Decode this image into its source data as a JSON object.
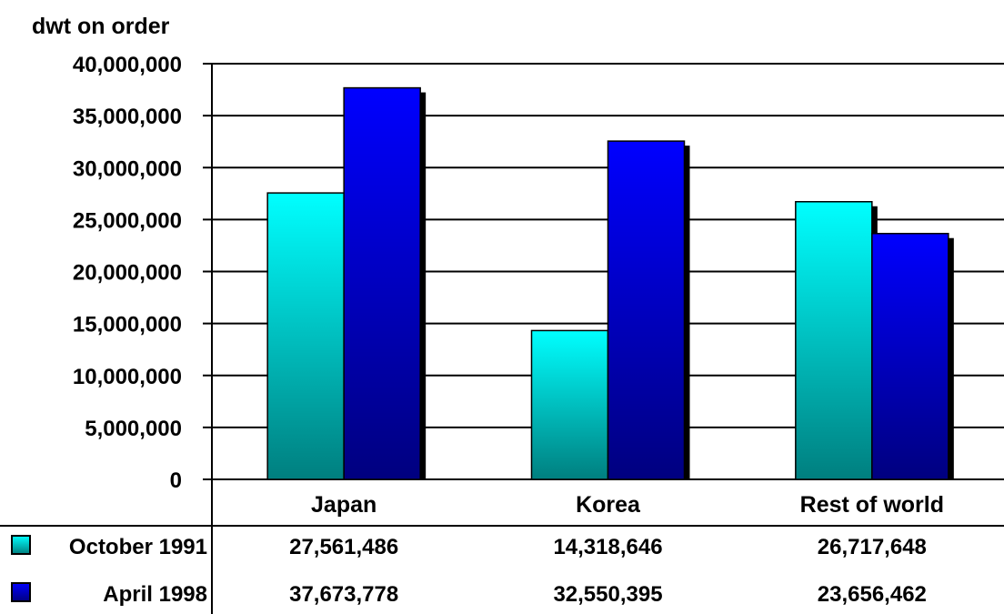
{
  "chart_data": {
    "type": "bar",
    "ylabel": "dwt on order",
    "categories": [
      "Japan",
      "Korea",
      "Rest of world"
    ],
    "series": [
      {
        "name": "October 1991",
        "values": [
          27561486,
          14318646,
          26717648
        ],
        "value_labels": [
          "27,561,486",
          "14,318,646",
          "26,717,648"
        ]
      },
      {
        "name": "April 1998",
        "values": [
          37673778,
          32550395,
          23656462
        ],
        "value_labels": [
          "37,673,778",
          "32,550,395",
          "23,656,462"
        ]
      }
    ],
    "ylim": [
      0,
      40000000
    ],
    "yticks": [
      0,
      5000000,
      10000000,
      15000000,
      20000000,
      25000000,
      30000000,
      35000000,
      40000000
    ],
    "ytick_labels": [
      "0",
      "5,000,000",
      "10,000,000",
      "15,000,000",
      "20,000,000",
      "25,000,000",
      "30,000,000",
      "35,000,000",
      "40,000,000"
    ],
    "grid": true,
    "legend": "data table below chart",
    "colors": {
      "October 1991": {
        "top": "#00ffff",
        "bottom": "#007f7f"
      },
      "April 1998": {
        "top": "#0000ff",
        "bottom": "#00007f"
      },
      "shadow": "#000000"
    }
  }
}
